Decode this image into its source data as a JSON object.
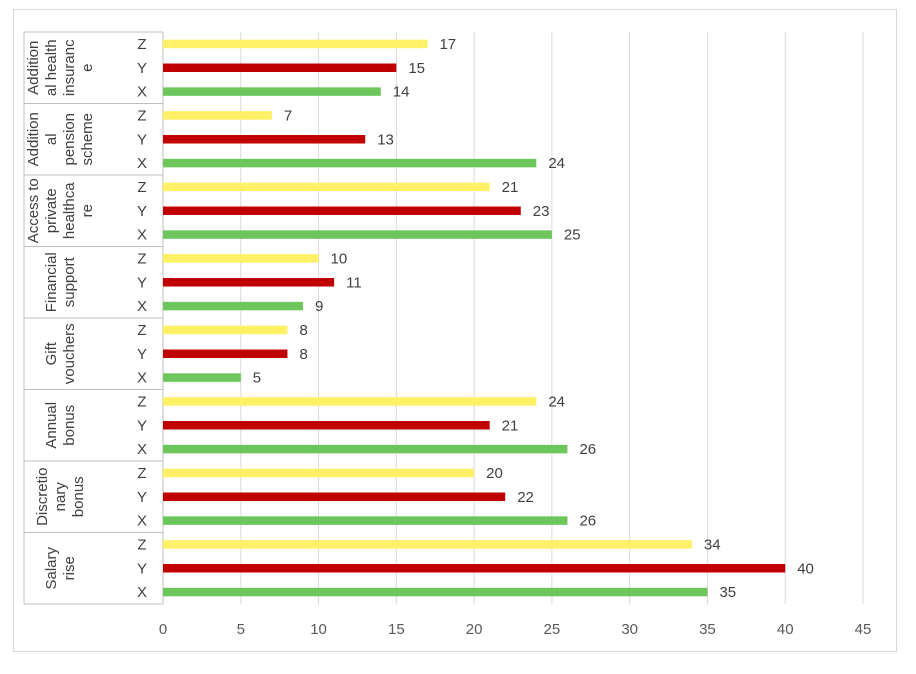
{
  "chart_data": {
    "type": "bar",
    "orientation": "horizontal",
    "x_axis": {
      "min": 0,
      "max": 45,
      "step": 5,
      "ticks": [
        "0",
        "5",
        "10",
        "15",
        "20",
        "25",
        "30",
        "35",
        "40",
        "45"
      ]
    },
    "grid": true,
    "legend": "none",
    "series_colors": {
      "X": "#6cc65b",
      "Y": "#c00000",
      "Z": "#fff066"
    },
    "groups": [
      {
        "lines": [
          "Addition",
          "al health",
          "insuranc",
          "e"
        ],
        "bars": [
          {
            "cat": "Z",
            "value": 17
          },
          {
            "cat": "Y",
            "value": 15
          },
          {
            "cat": "X",
            "value": 14
          }
        ]
      },
      {
        "lines": [
          "Addition",
          "al",
          "pension",
          "scheme"
        ],
        "bars": [
          {
            "cat": "Z",
            "value": 7
          },
          {
            "cat": "Y",
            "value": 13
          },
          {
            "cat": "X",
            "value": 24
          }
        ]
      },
      {
        "lines": [
          "Access to",
          "private",
          "healthca",
          "re"
        ],
        "bars": [
          {
            "cat": "Z",
            "value": 21
          },
          {
            "cat": "Y",
            "value": 23
          },
          {
            "cat": "X",
            "value": 25
          }
        ]
      },
      {
        "lines": [
          "Financial",
          "support"
        ],
        "bars": [
          {
            "cat": "Z",
            "value": 10
          },
          {
            "cat": "Y",
            "value": 11
          },
          {
            "cat": "X",
            "value": 9
          }
        ]
      },
      {
        "lines": [
          "Gift",
          "vouchers"
        ],
        "bars": [
          {
            "cat": "Z",
            "value": 8
          },
          {
            "cat": "Y",
            "value": 8
          },
          {
            "cat": "X",
            "value": 5
          }
        ]
      },
      {
        "lines": [
          "Annual",
          "bonus"
        ],
        "bars": [
          {
            "cat": "Z",
            "value": 24
          },
          {
            "cat": "Y",
            "value": 21
          },
          {
            "cat": "X",
            "value": 26
          }
        ]
      },
      {
        "lines": [
          "Discretio",
          "nary",
          "bonus"
        ],
        "bars": [
          {
            "cat": "Z",
            "value": 20
          },
          {
            "cat": "Y",
            "value": 22
          },
          {
            "cat": "X",
            "value": 26
          }
        ]
      },
      {
        "lines": [
          "Salary",
          "rise"
        ],
        "bars": [
          {
            "cat": "Z",
            "value": 34
          },
          {
            "cat": "Y",
            "value": 40
          },
          {
            "cat": "X",
            "value": 35
          }
        ]
      }
    ]
  }
}
